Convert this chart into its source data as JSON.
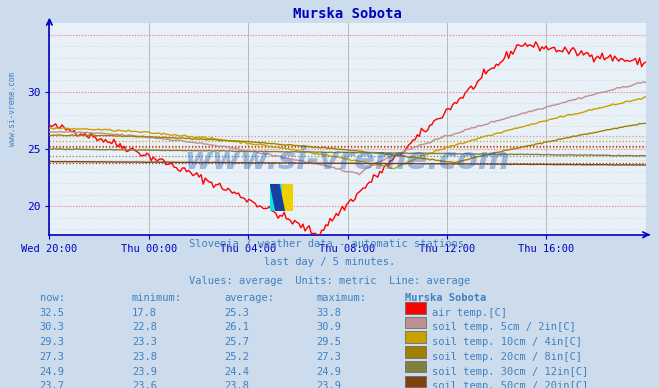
{
  "title": "Murska Sobota",
  "bg_color": "#ccdcec",
  "plot_bg_color": "#e8f0f8",
  "x_labels": [
    "Wed 20:00",
    "Thu 00:00",
    "Thu 04:00",
    "Thu 08:00",
    "Thu 12:00",
    "Thu 16:00"
  ],
  "ylim_min": 17.5,
  "ylim_max": 36.0,
  "yticks": [
    20,
    25,
    30
  ],
  "subtitle1": "Slovenia / weather data - automatic stations.",
  "subtitle2": "last day / 5 minutes.",
  "subtitle3": "Values: average  Units: metric  Line: average",
  "legend_title": "Murska Sobota",
  "series": [
    {
      "label": "air temp.[C]",
      "color": "#ff0000",
      "avg": 25.3,
      "now": 32.5,
      "min": 17.8,
      "max": 33.8
    },
    {
      "label": "soil temp. 5cm / 2in[C]",
      "color": "#c09090",
      "avg": 26.1,
      "now": 30.3,
      "min": 22.8,
      "max": 30.9
    },
    {
      "label": "soil temp. 10cm / 4in[C]",
      "color": "#c8a000",
      "avg": 25.7,
      "now": 29.3,
      "min": 23.3,
      "max": 29.5
    },
    {
      "label": "soil temp. 20cm / 8in[C]",
      "color": "#a08000",
      "avg": 25.2,
      "now": 27.3,
      "min": 23.8,
      "max": 27.3
    },
    {
      "label": "soil temp. 30cm / 12in[C]",
      "color": "#808040",
      "avg": 24.4,
      "now": 24.9,
      "min": 23.9,
      "max": 24.9
    },
    {
      "label": "soil temp. 50cm / 20in[C]",
      "color": "#804010",
      "avg": 23.8,
      "now": 23.7,
      "min": 23.6,
      "max": 23.9
    }
  ],
  "swatch_colors": [
    "#ff0000",
    "#c09090",
    "#c8a000",
    "#a08000",
    "#808040",
    "#804010"
  ],
  "table_rows": [
    [
      "32.5",
      "17.8",
      "25.3",
      "33.8"
    ],
    [
      "30.3",
      "22.8",
      "26.1",
      "30.9"
    ],
    [
      "29.3",
      "23.3",
      "25.7",
      "29.5"
    ],
    [
      "27.3",
      "23.8",
      "25.2",
      "27.3"
    ],
    [
      "24.9",
      "23.9",
      "24.4",
      "24.9"
    ],
    [
      "23.7",
      "23.6",
      "23.8",
      "23.9"
    ]
  ],
  "text_color": "#4080c0",
  "axis_color": "#0000c0",
  "watermark": "www.si-vreme.com"
}
